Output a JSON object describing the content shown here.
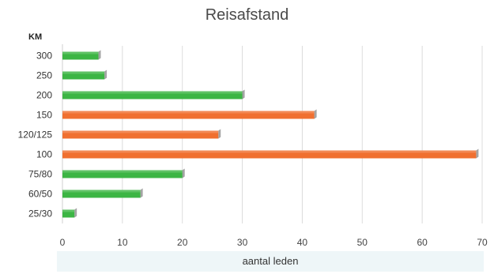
{
  "chart_data": {
    "type": "bar",
    "orientation": "horizontal",
    "title": "Reisafstand",
    "ylabel": "KM",
    "xlabel": "aantal leden",
    "categories": [
      "300",
      "250",
      "200",
      "150",
      "120/125",
      "100",
      "75/80",
      "60/50",
      "25/30"
    ],
    "values": [
      6,
      7,
      30,
      42,
      26,
      69,
      20,
      13,
      2
    ],
    "bar_colors": [
      "#3cb544",
      "#3cb544",
      "#3cb544",
      "#f07030",
      "#f07030",
      "#f07030",
      "#3cb544",
      "#3cb544",
      "#3cb544"
    ],
    "xlim": [
      0,
      70
    ],
    "xticks": [
      "0",
      "10",
      "20",
      "30",
      "40",
      "50",
      "60",
      "70"
    ],
    "grid": true
  }
}
